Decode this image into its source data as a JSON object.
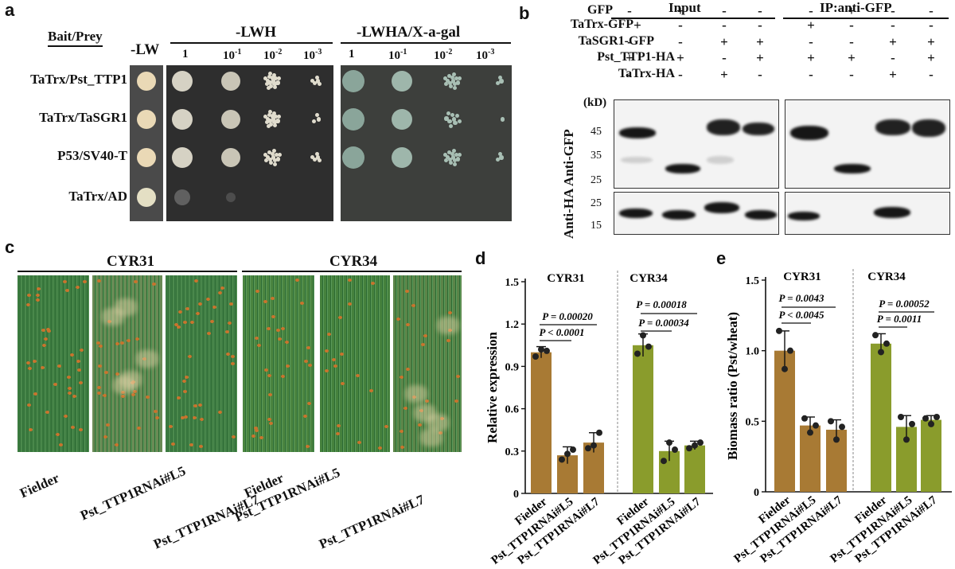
{
  "panel_a": {
    "letter": "a",
    "row_header": "Bait/Prey",
    "lw_header": "-LW",
    "lwh_header": "-LWH",
    "lwha_header": "-LWHA/X-a-gal",
    "dilutions": [
      "1",
      "10",
      "10",
      "10"
    ],
    "dilution_exps": [
      "",
      "-1",
      "-2",
      "-3"
    ],
    "rows": [
      "TaTrx/Pst_TTP1",
      "TaTrx/TaSGR1",
      "P53/SV40-T",
      "TaTrx/AD"
    ]
  },
  "panel_b": {
    "letter": "b",
    "input_label": "Input",
    "ip_label": "IP:anti-GFP",
    "rows": [
      {
        "name": "GFP",
        "signs": [
          "-",
          "+",
          "-",
          "-",
          "-",
          "+",
          "-",
          "-"
        ]
      },
      {
        "name": "TaTrx-GFP",
        "signs": [
          "+",
          "-",
          "-",
          "-",
          "+",
          "-",
          "-",
          "-"
        ]
      },
      {
        "name": "TaSGR1-GFP",
        "signs": [
          "-",
          "-",
          "+",
          "+",
          "-",
          "-",
          "+",
          "+"
        ]
      },
      {
        "name": "Pst_TTP1-HA",
        "signs": [
          "+",
          "+",
          "-",
          "+",
          "+",
          "+",
          "-",
          "+"
        ]
      },
      {
        "name": "TaTrx-HA",
        "signs": [
          "-",
          "-",
          "+",
          "-",
          "-",
          "-",
          "+",
          "-"
        ]
      }
    ],
    "kd_label": "(kD)",
    "gfp_markers": [
      "45",
      "35",
      "25"
    ],
    "ha_markers": [
      "25",
      "15"
    ],
    "anti_gfp_label": "Anti-GFP",
    "anti_ha_label": "Anti-HA"
  },
  "panel_c": {
    "letter": "c",
    "strain1": "CYR31",
    "strain2": "CYR34",
    "labels": [
      "Fielder",
      "Pst_TTP1RNAi#L5",
      "Pst_TTP1RNAi#L7",
      "Fielder",
      "Pst_TTP1RNAi#L5",
      "Pst_TTP1RNAi#L7"
    ]
  },
  "chart_data": [
    {
      "type": "bar",
      "panel": "d",
      "ylabel": "Relative expression",
      "ylim": [
        0,
        1.5
      ],
      "yticks": [
        "0",
        "0.3",
        "0.6",
        "0.9",
        "1.2",
        "1.5"
      ],
      "groups": [
        "CYR31",
        "CYR34"
      ],
      "categories": [
        "Fielder",
        "Pst_TTP1RNAi#L5",
        "Pst_TTP1RNAi#L7",
        "Fielder",
        "Pst_TTP1RNAi#L5",
        "Pst_TTP1RNAi#L7"
      ],
      "values": [
        1.0,
        0.27,
        0.36,
        1.05,
        0.3,
        0.34
      ],
      "errors": [
        0.04,
        0.06,
        0.07,
        0.08,
        0.07,
        0.03
      ],
      "points": [
        [
          0.97,
          1.02,
          1.01
        ],
        [
          0.24,
          0.28,
          0.31
        ],
        [
          0.32,
          0.34,
          0.43
        ],
        [
          0.99,
          1.12,
          1.04
        ],
        [
          0.23,
          0.36,
          0.31
        ],
        [
          0.32,
          0.34,
          0.36
        ]
      ],
      "colors": [
        "#a87a34",
        "#a87a34",
        "#a87a34",
        "#8a9c2c",
        "#8a9c2c",
        "#8a9c2c"
      ],
      "pvalues": [
        {
          "text": "P = 0.00020",
          "group": 0
        },
        {
          "text": "P < 0.0001",
          "group": 0
        },
        {
          "text": "P = 0.00018",
          "group": 1
        },
        {
          "text": "P = 0.00034",
          "group": 1
        }
      ]
    },
    {
      "type": "bar",
      "panel": "e",
      "ylabel": "Biomass ratio (Pst/wheat)",
      "ylim": [
        0,
        1.5
      ],
      "yticks": [
        "0",
        "0.5",
        "1.0",
        "1.5"
      ],
      "groups": [
        "CYR31",
        "CYR34"
      ],
      "categories": [
        "Fielder",
        "Pst_TTP1RNAi#L5",
        "Pst_TTP1RNAi#L7",
        "Fielder",
        "Pst_TTP1RNAi#L5",
        "Pst_TTP1RNAi#L7"
      ],
      "values": [
        1.0,
        0.47,
        0.44,
        1.05,
        0.46,
        0.51
      ],
      "errors": [
        0.14,
        0.06,
        0.07,
        0.07,
        0.08,
        0.03
      ],
      "points": [
        [
          1.14,
          0.87,
          1.0
        ],
        [
          0.52,
          0.42,
          0.47
        ],
        [
          0.5,
          0.37,
          0.46
        ],
        [
          1.11,
          0.99,
          1.05
        ],
        [
          0.53,
          0.37,
          0.48
        ],
        [
          0.52,
          0.48,
          0.53
        ]
      ],
      "colors": [
        "#a87a34",
        "#a87a34",
        "#a87a34",
        "#8a9c2c",
        "#8a9c2c",
        "#8a9c2c"
      ],
      "pvalues": [
        {
          "text": "P = 0.0043",
          "group": 0
        },
        {
          "text": "P < 0.0045",
          "group": 0
        },
        {
          "text": "P = 0.00052",
          "group": 1
        },
        {
          "text": "P = 0.0011",
          "group": 1
        }
      ]
    }
  ]
}
